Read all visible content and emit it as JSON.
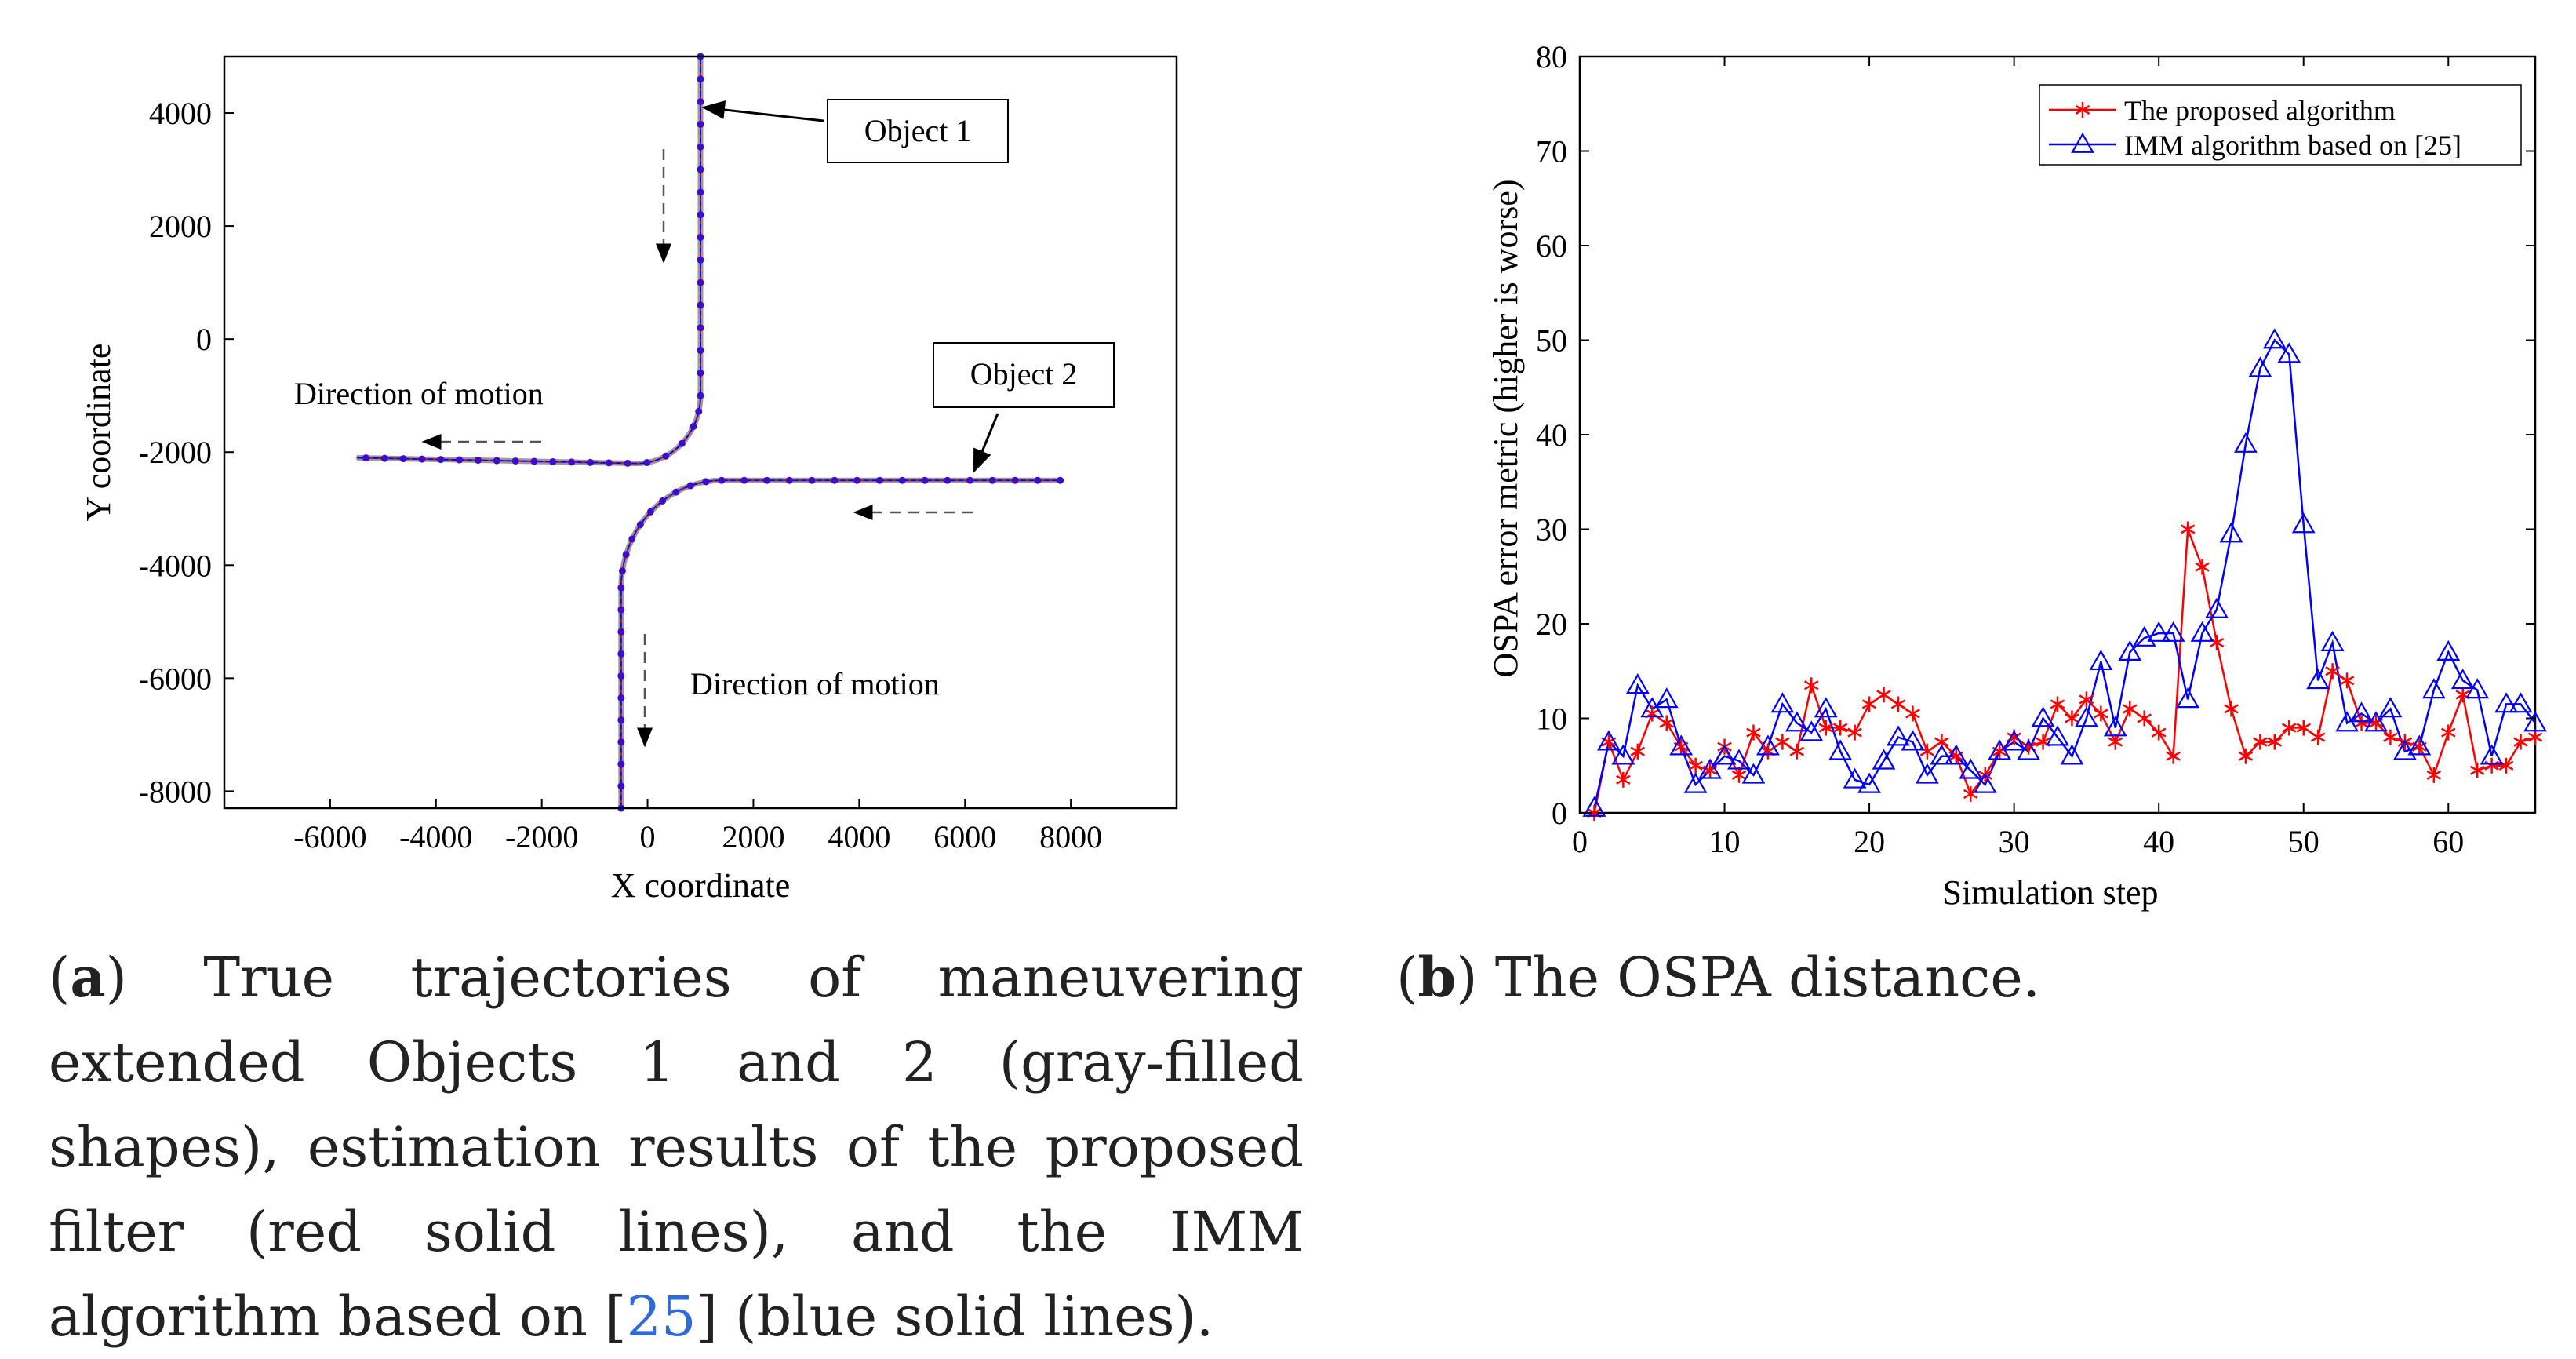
{
  "colors": {
    "proposed": "#ff0000",
    "imm": "#0000ff",
    "axis": "#000000",
    "marker": "#3f0dc8"
  },
  "figure_a": {
    "caption": {
      "label": "a",
      "open": "(",
      "close": ")",
      "text1": " True trajectories of maneuvering extended Objects 1 and 2 (gray-filled shapes), estimation results of the proposed filter (red solid lines), and the IMM algorithm based on [",
      "ref": "25",
      "text2": "] (blue solid lines)."
    },
    "annotations": {
      "object1": "Object 1",
      "object2": "Object 2",
      "motion1": "Direction of motion",
      "motion2": "Direction of motion"
    }
  },
  "figure_b": {
    "caption": {
      "label": "b",
      "open": "(",
      "close": ")",
      "text": " The OSPA distance."
    }
  },
  "chart_data": [
    {
      "type": "line",
      "id": "trajectories",
      "title": "",
      "xlabel": "X coordinate",
      "ylabel": "Y coordinate",
      "xlim": [
        -8000,
        10000
      ],
      "ylim": [
        -8300,
        5000
      ],
      "xticks": [
        -6000,
        -4000,
        -2000,
        0,
        2000,
        4000,
        6000,
        8000
      ],
      "yticks": [
        -8000,
        -6000,
        -4000,
        -2000,
        0,
        2000,
        4000
      ],
      "series": [
        {
          "name": "Object 1 trajectory",
          "segments": [
            {
              "type": "line",
              "from": [
                1000,
                5000
              ],
              "to": [
                1000,
                -1000
              ]
            },
            {
              "type": "arc",
              "center": [
                -200,
                -1000
              ],
              "radius": 1200,
              "start_deg": 0,
              "end_deg": -90
            },
            {
              "type": "line",
              "from": [
                -200,
                -2200
              ],
              "to": [
                -5500,
                -2100
              ]
            }
          ]
        },
        {
          "name": "Object 2 trajectory",
          "segments": [
            {
              "type": "line",
              "from": [
                7800,
                -2500
              ],
              "to": [
                1400,
                -2500
              ]
            },
            {
              "type": "arc",
              "center": [
                1400,
                -4400
              ],
              "radius": 1900,
              "start_deg": 90,
              "end_deg": 180
            },
            {
              "type": "line",
              "from": [
                -500,
                -4400
              ],
              "to": [
                -500,
                -8300
              ]
            }
          ]
        }
      ]
    },
    {
      "type": "line",
      "id": "ospa",
      "title": "",
      "xlabel": "Simulation step",
      "ylabel": "OSPA error metric (higher is worse)",
      "xlim": [
        0,
        66
      ],
      "ylim": [
        0,
        80
      ],
      "xticks": [
        0,
        10,
        20,
        30,
        40,
        50,
        60
      ],
      "yticks": [
        0,
        10,
        20,
        30,
        40,
        50,
        60,
        70,
        80
      ],
      "legend_position": "top-right",
      "series": [
        {
          "name": "The proposed algorithm",
          "marker": "asterisk",
          "color": "#ff0000",
          "x": [
            1,
            2,
            3,
            4,
            5,
            6,
            7,
            8,
            9,
            10,
            11,
            12,
            13,
            14,
            15,
            16,
            17,
            18,
            19,
            20,
            21,
            22,
            23,
            24,
            25,
            26,
            27,
            28,
            29,
            30,
            31,
            32,
            33,
            34,
            35,
            36,
            37,
            38,
            39,
            40,
            41,
            42,
            43,
            44,
            45,
            46,
            47,
            48,
            49,
            50,
            51,
            52,
            53,
            54,
            55,
            56,
            57,
            58,
            59,
            60,
            61,
            62,
            63,
            64,
            65,
            66
          ],
          "values": [
            0,
            7.5,
            3.5,
            6.5,
            10.5,
            9.5,
            7,
            5,
            4.5,
            7,
            4,
            8.5,
            6.5,
            7.5,
            6.5,
            13.5,
            9,
            9,
            8.5,
            11.5,
            12.5,
            11.5,
            10.5,
            6.5,
            7.5,
            6,
            2,
            4,
            6.5,
            8,
            7,
            7.5,
            11.5,
            10,
            12,
            10.5,
            7.5,
            11,
            10,
            8.5,
            6,
            30,
            26,
            18,
            11,
            6,
            7.5,
            7.5,
            9,
            9,
            8,
            15,
            14,
            9.5,
            9.5,
            8,
            7.5,
            7,
            4,
            8.5,
            12.5,
            4.5,
            5,
            5,
            7.5,
            8
          ]
        },
        {
          "name": "IMM algorithm based on [25]",
          "marker": "triangle",
          "color": "#0000ff",
          "x": [
            1,
            2,
            3,
            4,
            5,
            6,
            7,
            8,
            9,
            10,
            11,
            12,
            13,
            14,
            15,
            16,
            17,
            18,
            19,
            20,
            21,
            22,
            23,
            24,
            25,
            26,
            27,
            28,
            29,
            30,
            31,
            32,
            33,
            34,
            35,
            36,
            37,
            38,
            39,
            40,
            41,
            42,
            43,
            44,
            45,
            46,
            47,
            48,
            49,
            50,
            51,
            52,
            53,
            54,
            55,
            56,
            57,
            58,
            59,
            60,
            61,
            62,
            63,
            64,
            65,
            66
          ],
          "values": [
            0.5,
            7.5,
            6,
            13.5,
            11,
            12,
            7,
            3,
            4.5,
            6,
            5.5,
            4,
            7,
            11.5,
            9.5,
            8.5,
            11,
            6.5,
            3.5,
            3,
            5.5,
            8,
            7.5,
            4,
            6,
            6,
            4.5,
            3,
            6.5,
            7.5,
            6.5,
            10,
            8,
            6,
            10,
            16,
            9,
            17,
            18.5,
            19,
            19,
            12,
            19,
            21.5,
            29.5,
            39,
            47,
            50,
            48.5,
            30.5,
            14,
            18,
            9.5,
            10.5,
            9.5,
            11,
            6.5,
            7,
            13,
            17,
            14,
            13,
            6,
            11.5,
            11.5,
            9.5
          ]
        }
      ]
    }
  ]
}
